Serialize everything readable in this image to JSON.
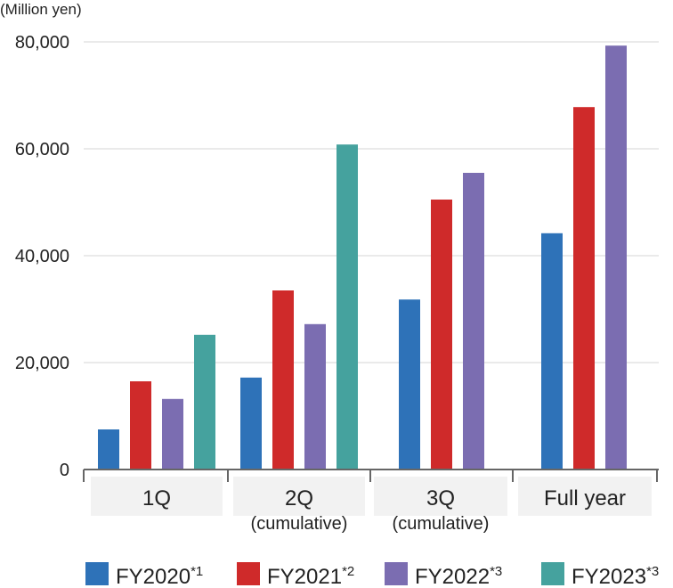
{
  "chart_data": {
    "type": "bar",
    "unit_label": "(Million yen)",
    "categories": [
      {
        "label": "1Q",
        "sub": ""
      },
      {
        "label": "2Q",
        "sub": "(cumulative)"
      },
      {
        "label": "3Q",
        "sub": "(cumulative)"
      },
      {
        "label": "Full year",
        "sub": ""
      }
    ],
    "series": [
      {
        "name": "FY2020",
        "note": "*1",
        "color": "#2e72b8",
        "values": [
          7500,
          17200,
          31800,
          44200
        ]
      },
      {
        "name": "FY2021",
        "note": "*2",
        "color": "#cf2a2a",
        "values": [
          16500,
          33500,
          50500,
          67800
        ]
      },
      {
        "name": "FY2022",
        "note": "*3",
        "color": "#7b6db1",
        "values": [
          13200,
          27200,
          55500,
          79300
        ]
      },
      {
        "name": "FY2023",
        "note": "*3",
        "color": "#45a29e",
        "values": [
          25200,
          60800,
          null,
          null
        ]
      }
    ],
    "ylim": [
      0,
      80000
    ],
    "yticks": [
      0,
      20000,
      40000,
      60000,
      80000
    ],
    "ytick_labels": [
      "0",
      "20,000",
      "40,000",
      "60,000",
      "80,000"
    ],
    "grid": true,
    "legend_position": "bottom"
  }
}
